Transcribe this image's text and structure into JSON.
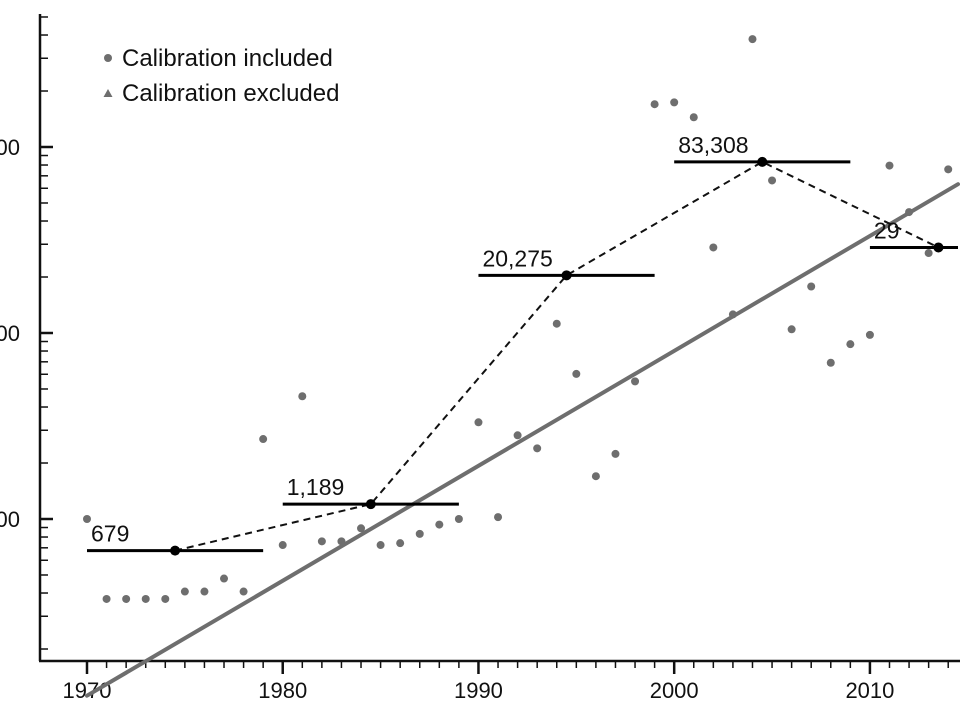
{
  "chart_data": {
    "type": "scatter",
    "title": "",
    "xlabel": "",
    "ylabel": "",
    "xlim": [
      1970,
      2014.5
    ],
    "ylim_log10": [
      0.35,
      5.85
    ],
    "y_scale": "log",
    "x_ticks": [
      1970,
      1980,
      1990,
      2000,
      2010
    ],
    "x_tick_labels": [
      "1970",
      "1980",
      "1990",
      "2000",
      "2010"
    ],
    "y_ticks_log10": [
      1,
      2,
      3,
      4,
      5
    ],
    "y_visible_tick_labels": [
      {
        "log10": 5,
        "text": "00"
      },
      {
        "log10": 4,
        "text": "00"
      },
      {
        "log10": 3,
        "text": "00"
      }
    ],
    "legend": {
      "position": "top-left",
      "entries": [
        {
          "label": "Calibration included",
          "marker": "circle"
        },
        {
          "label": "Calibration excluded",
          "marker": "triangle"
        }
      ]
    },
    "colors": {
      "points": "#6e6e6e",
      "trend": "#6e6e6e",
      "means": "#000000"
    },
    "series": [
      {
        "name": "Calibration included",
        "marker": "circle",
        "points": [
          [
            1970,
            3.0
          ],
          [
            1971,
            2.57
          ],
          [
            1972,
            2.57
          ],
          [
            1973,
            2.57
          ],
          [
            1974,
            2.57
          ],
          [
            1975,
            2.61
          ],
          [
            1976,
            2.61
          ],
          [
            1977,
            2.68
          ],
          [
            1978,
            2.61
          ],
          [
            1979,
            3.43
          ],
          [
            1980,
            2.86
          ],
          [
            1981,
            3.66
          ],
          [
            1982,
            2.88
          ],
          [
            1983,
            2.88
          ],
          [
            1984,
            2.95
          ],
          [
            1985,
            2.86
          ],
          [
            1986,
            2.87
          ],
          [
            1987,
            2.92
          ],
          [
            1988,
            2.97
          ],
          [
            1989,
            3.0
          ],
          [
            1990,
            3.52
          ],
          [
            1991,
            3.01
          ],
          [
            1992,
            3.45
          ],
          [
            1993,
            3.38
          ],
          [
            1994,
            4.05
          ],
          [
            1995,
            3.78
          ],
          [
            1996,
            3.23
          ],
          [
            1997,
            3.35
          ],
          [
            1998,
            3.74
          ],
          [
            1999,
            5.23
          ],
          [
            2000,
            5.24
          ],
          [
            2001,
            5.16
          ],
          [
            2002,
            4.46
          ],
          [
            2003,
            4.1
          ],
          [
            2004,
            5.58
          ],
          [
            2005,
            4.82
          ],
          [
            2006,
            4.02
          ],
          [
            2007,
            4.25
          ],
          [
            2008,
            3.84
          ],
          [
            2009,
            3.94
          ],
          [
            2010,
            3.99
          ],
          [
            2011,
            4.9
          ],
          [
            2012,
            4.65
          ],
          [
            2013,
            4.43
          ],
          [
            2014,
            4.88
          ]
        ]
      },
      {
        "name": "Calibration excluded",
        "marker": "triangle",
        "points": []
      }
    ],
    "trend_line": {
      "from": [
        1970,
        2.05
      ],
      "to": [
        2014.5,
        4.8
      ]
    },
    "period_means": [
      {
        "label": "679",
        "x": 1974.5,
        "x_range": [
          1970,
          1979
        ],
        "log10": 2.83
      },
      {
        "label": "1,189",
        "x": 1984.5,
        "x_range": [
          1980,
          1989
        ],
        "log10": 3.08
      },
      {
        "label": "20,275",
        "x": 1994.5,
        "x_range": [
          1990,
          1999
        ],
        "log10": 4.31
      },
      {
        "label": "83,308",
        "x": 2004.5,
        "x_range": [
          2000,
          2009
        ],
        "log10": 4.92
      },
      {
        "label": "29",
        "x": 2013.5,
        "x_range": [
          2010,
          2014.5
        ],
        "log10": 4.46
      }
    ]
  }
}
